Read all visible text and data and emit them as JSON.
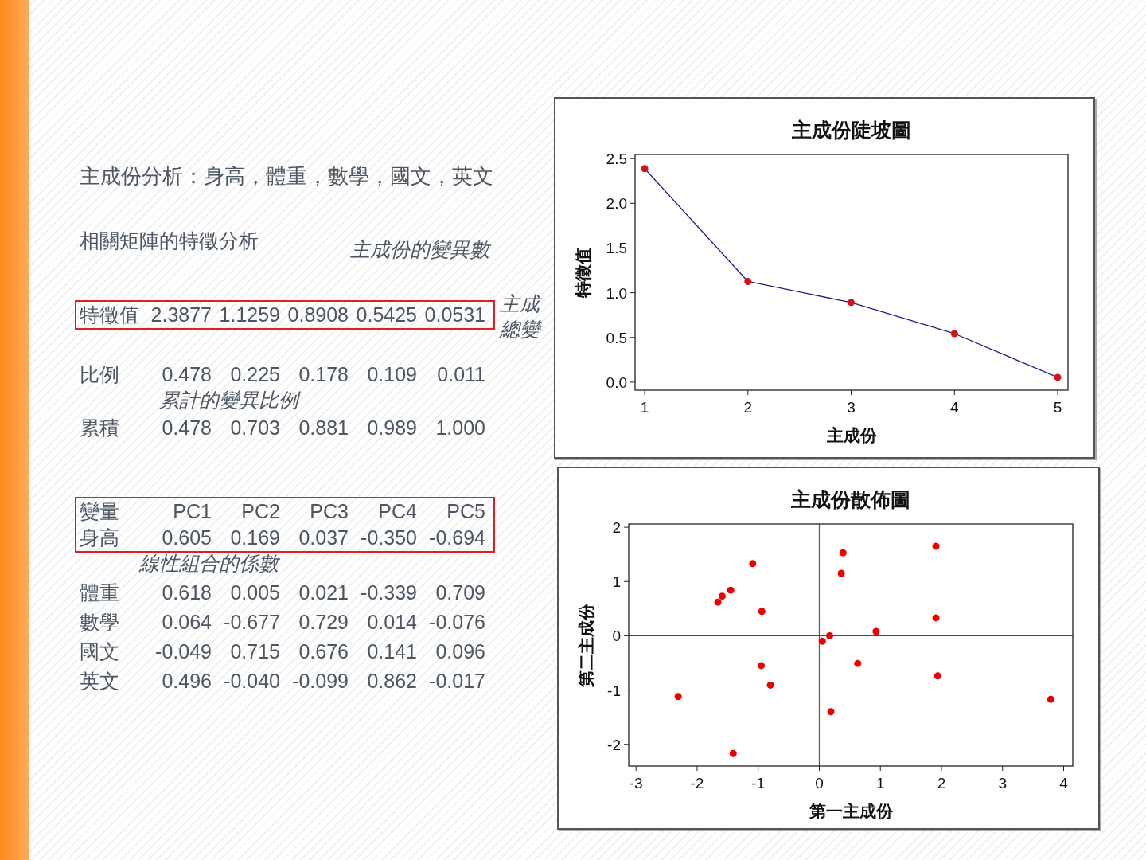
{
  "chart_data": [
    {
      "type": "other",
      "title": "主成份分析：身高，體重，數學，國文，英文",
      "subtitle": "相關矩陣的特徵分析",
      "annotations": [
        "特徵值  2.3877  1.1259  0.8908  0.5425  0.0531",
        "比例  0.478  0.225  0.178  0.109  0.011",
        "累積  0.478  0.703  0.881  0.989  1.000",
        "變量  PC1  PC2  PC3  PC4  PC5",
        "身高  0.605  0.169  0.037  -0.350  -0.694",
        "體重  0.618  0.005  0.021  -0.339  0.709",
        "數學  0.064  -0.677  0.729  0.014  -0.076",
        "國文  -0.049  0.715  0.676  0.141  0.096",
        "英文  0.496  -0.040  -0.099  0.862  -0.017"
      ]
    },
    {
      "type": "other",
      "annotations": [
        "主成份的變異數",
        "主成",
        "總變",
        "累計的變異比例",
        "線性組合的係數"
      ]
    },
    {
      "type": "line",
      "title": "主成份陡坡圖",
      "xlabel": "主成份",
      "ylabel": "特徵值",
      "x": [
        1,
        2,
        3,
        4,
        5
      ],
      "xlim": [
        0.907,
        5.1
      ],
      "xticks": [
        1,
        2,
        3,
        4,
        5
      ],
      "ylim": [
        -0.09,
        2.546
      ],
      "yticks": [
        {
          "value": 0,
          "label": "0.0"
        },
        {
          "value": 0.5,
          "label": "0.5"
        },
        {
          "value": 1,
          "label": "1.0"
        },
        {
          "value": 1.5,
          "label": "1.5"
        },
        {
          "value": 2,
          "label": "2.0"
        },
        {
          "value": 2.5,
          "label": "2.5"
        }
      ],
      "marker": "circle",
      "line_style": "solid",
      "series": [
        {
          "color": "#1f1f8a",
          "marker": "none",
          "values": [
            2.3877,
            1.1259,
            0.8908,
            0.5425,
            0.0531
          ]
        },
        {
          "type": "scatter",
          "color": "#d0141c",
          "values": [
            2.3877,
            1.1259,
            0.8908,
            0.5425,
            0.0531
          ]
        }
      ]
    },
    {
      "type": "scatter",
      "title": "主成份散佈圖",
      "xlabel": "第一主成份",
      "ylabel": "第二主成份",
      "xlim": [
        -3.12,
        4.15
      ],
      "xticks": [
        -3,
        -2,
        -1,
        0,
        1,
        2,
        3,
        4
      ],
      "ylim": [
        -2.4,
        2.06
      ],
      "yticks": [
        -2,
        -1,
        0,
        1,
        2
      ],
      "marker": "circle",
      "ref_lines": [
        {
          "axis": "x",
          "value": 0,
          "color": "#5a5a5a"
        },
        {
          "axis": "y",
          "value": 0,
          "color": "#4a4a4a"
        }
      ],
      "series": [
        {
          "color": "#ee0000",
          "x": [
            -1.09,
            0.39,
            1.91,
            0.36,
            -1.45,
            -1.59,
            -1.66,
            -0.94,
            1.91,
            0.93,
            0.17,
            0.05,
            0.63,
            -0.95,
            1.94,
            -0.8,
            -2.31,
            0.19,
            3.79,
            -1.41
          ],
          "values": [
            1.33,
            1.53,
            1.65,
            1.15,
            0.84,
            0.73,
            0.62,
            0.45,
            0.33,
            0.08,
            0.0,
            -0.1,
            -0.51,
            -0.55,
            -0.74,
            -0.91,
            -1.12,
            -1.4,
            -1.17,
            -2.17
          ]
        }
      ]
    }
  ]
}
